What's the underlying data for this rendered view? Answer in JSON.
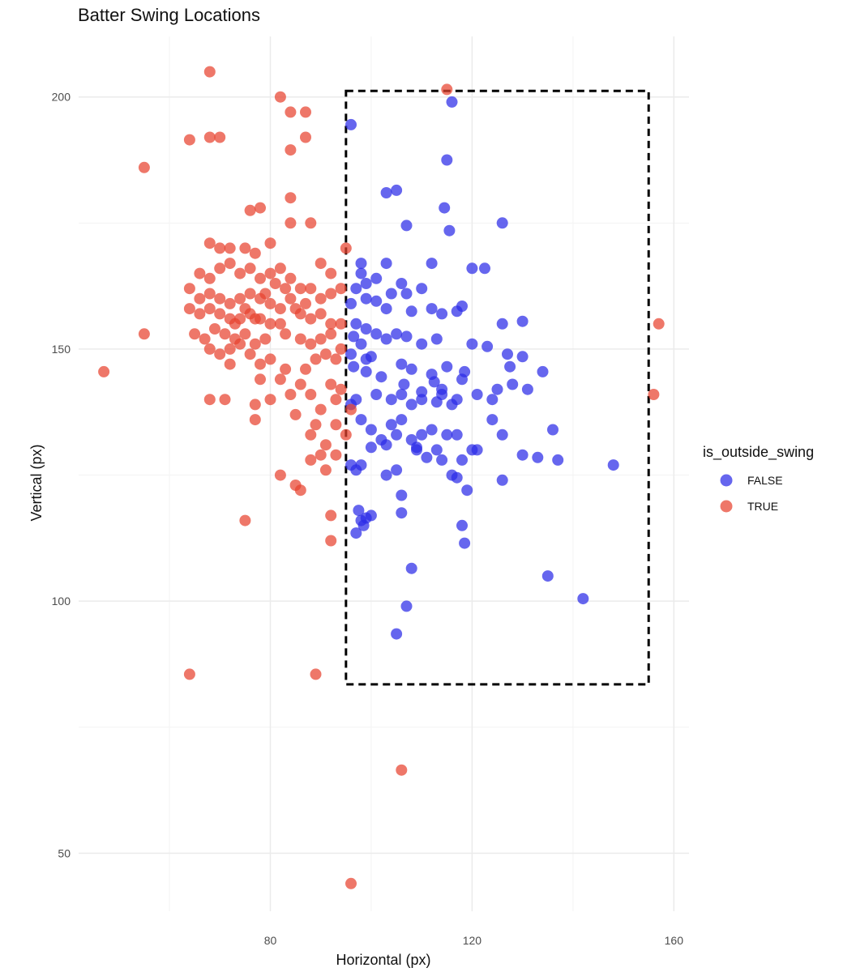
{
  "chart_data": {
    "type": "scatter",
    "title": "Batter Swing Locations",
    "xlabel": "Horizontal (px)",
    "ylabel": "Vertical (px)",
    "xlim": [
      42,
      163
    ],
    "ylim": [
      38.5,
      212
    ],
    "x_ticks": [
      80,
      120,
      160
    ],
    "y_ticks": [
      50,
      100,
      150,
      200
    ],
    "grid": true,
    "legend": {
      "title": "is_outside_swing",
      "placement": "right"
    },
    "strike_zone": {
      "x": [
        95,
        155
      ],
      "y": [
        83.5,
        201.2
      ],
      "style": "dashed"
    },
    "colors": {
      "FALSE": "#2b2be8",
      "TRUE": "#e8422f"
    },
    "series": [
      {
        "name": "FALSE",
        "points": [
          [
            96,
            194.5
          ],
          [
            116,
            199
          ],
          [
            115,
            187.5
          ],
          [
            103,
            181
          ],
          [
            105,
            181.5
          ],
          [
            114.5,
            178
          ],
          [
            107,
            174.5
          ],
          [
            115.5,
            173.5
          ],
          [
            126,
            175
          ],
          [
            98,
            167
          ],
          [
            103,
            167
          ],
          [
            112,
            167
          ],
          [
            120,
            166
          ],
          [
            122.5,
            166
          ],
          [
            98,
            165
          ],
          [
            99,
            163
          ],
          [
            101,
            164
          ],
          [
            104,
            161
          ],
          [
            107,
            161
          ],
          [
            106,
            163
          ],
          [
            110,
            162
          ],
          [
            97,
            162
          ],
          [
            99,
            160
          ],
          [
            101,
            159.5
          ],
          [
            103,
            158
          ],
          [
            96,
            159
          ],
          [
            108,
            157.5
          ],
          [
            112,
            158
          ],
          [
            114,
            157
          ],
          [
            117,
            157.5
          ],
          [
            118,
            158.5
          ],
          [
            130,
            155.5
          ],
          [
            126,
            155
          ],
          [
            97,
            155
          ],
          [
            99,
            154
          ],
          [
            101,
            153
          ],
          [
            96.5,
            152.5
          ],
          [
            103,
            152
          ],
          [
            105,
            153
          ],
          [
            107,
            152.5
          ],
          [
            110,
            151
          ],
          [
            113,
            152
          ],
          [
            120,
            151
          ],
          [
            123,
            150.5
          ],
          [
            98,
            151
          ],
          [
            96,
            149
          ],
          [
            99,
            148
          ],
          [
            100,
            148.5
          ],
          [
            127,
            149
          ],
          [
            130,
            148.5
          ],
          [
            127.5,
            146.5
          ],
          [
            134,
            145.5
          ],
          [
            96.5,
            146.5
          ],
          [
            99,
            145.5
          ],
          [
            102,
            144.5
          ],
          [
            106,
            147
          ],
          [
            108,
            146
          ],
          [
            112,
            145
          ],
          [
            115,
            146.5
          ],
          [
            118,
            144
          ],
          [
            128,
            143
          ],
          [
            131,
            142
          ],
          [
            125,
            142
          ],
          [
            121,
            141
          ],
          [
            124,
            140
          ],
          [
            117,
            140
          ],
          [
            114,
            141
          ],
          [
            113,
            139.5
          ],
          [
            110,
            140
          ],
          [
            108,
            139
          ],
          [
            106,
            141
          ],
          [
            104,
            140
          ],
          [
            101,
            141
          ],
          [
            97,
            140
          ],
          [
            96,
            139
          ],
          [
            98,
            136
          ],
          [
            100,
            134
          ],
          [
            102,
            132
          ],
          [
            104,
            135
          ],
          [
            105,
            133
          ],
          [
            106,
            136
          ],
          [
            108,
            132
          ],
          [
            109,
            130
          ],
          [
            110,
            133
          ],
          [
            112,
            134
          ],
          [
            113,
            130
          ],
          [
            114,
            128
          ],
          [
            115,
            133
          ],
          [
            117,
            133
          ],
          [
            118,
            128
          ],
          [
            116,
            125
          ],
          [
            117,
            124.5
          ],
          [
            121,
            130
          ],
          [
            124,
            136
          ],
          [
            126,
            133
          ],
          [
            130,
            129
          ],
          [
            133,
            128.5
          ],
          [
            136,
            134
          ],
          [
            137,
            128
          ],
          [
            148,
            127
          ],
          [
            126,
            124
          ],
          [
            119,
            122
          ],
          [
            106,
            121
          ],
          [
            103,
            125
          ],
          [
            105,
            126
          ],
          [
            98,
            127
          ],
          [
            97,
            126
          ],
          [
            96,
            127
          ],
          [
            97.5,
            118
          ],
          [
            98,
            116
          ],
          [
            99,
            116.5
          ],
          [
            100,
            117
          ],
          [
            98.5,
            115
          ],
          [
            97,
            113.5
          ],
          [
            106,
            117.5
          ],
          [
            118,
            115
          ],
          [
            118.5,
            111.5
          ],
          [
            108,
            106.5
          ],
          [
            135,
            105
          ],
          [
            142,
            100.5
          ],
          [
            107,
            99
          ],
          [
            105,
            93.5
          ],
          [
            106.5,
            143
          ],
          [
            110,
            141.5
          ],
          [
            112.5,
            143.5
          ],
          [
            114,
            142
          ],
          [
            116,
            139
          ],
          [
            118.5,
            145.5
          ],
          [
            120,
            130
          ],
          [
            109,
            130.5
          ],
          [
            111,
            128.5
          ],
          [
            103,
            131
          ],
          [
            100,
            130.5
          ]
        ]
      },
      {
        "name": "TRUE",
        "points": [
          [
            68,
            205
          ],
          [
            115,
            201.5
          ],
          [
            82,
            200
          ],
          [
            84,
            197
          ],
          [
            87,
            197
          ],
          [
            64,
            191.5
          ],
          [
            68,
            192
          ],
          [
            70,
            192
          ],
          [
            84,
            189.5
          ],
          [
            87,
            192
          ],
          [
            55,
            186
          ],
          [
            84,
            180
          ],
          [
            76,
            177.5
          ],
          [
            78,
            178
          ],
          [
            84,
            175
          ],
          [
            88,
            175
          ],
          [
            68,
            171
          ],
          [
            70,
            170
          ],
          [
            72,
            170
          ],
          [
            75,
            170
          ],
          [
            77,
            169
          ],
          [
            80,
            171
          ],
          [
            95,
            170
          ],
          [
            66,
            165
          ],
          [
            68,
            164
          ],
          [
            70,
            166
          ],
          [
            72,
            167
          ],
          [
            74,
            165
          ],
          [
            76,
            166
          ],
          [
            78,
            164
          ],
          [
            80,
            165
          ],
          [
            82,
            166
          ],
          [
            84,
            164
          ],
          [
            90,
            167
          ],
          [
            92,
            165
          ],
          [
            64,
            162
          ],
          [
            66,
            160
          ],
          [
            68,
            161
          ],
          [
            70,
            160
          ],
          [
            72,
            159
          ],
          [
            74,
            160
          ],
          [
            76,
            161
          ],
          [
            78,
            160
          ],
          [
            80,
            159
          ],
          [
            82,
            158
          ],
          [
            84,
            160
          ],
          [
            86,
            162
          ],
          [
            88,
            162
          ],
          [
            90,
            160
          ],
          [
            92,
            161
          ],
          [
            94,
            162
          ],
          [
            64,
            158
          ],
          [
            66,
            157
          ],
          [
            68,
            158
          ],
          [
            70,
            157
          ],
          [
            72,
            156
          ],
          [
            74,
            156
          ],
          [
            76,
            157
          ],
          [
            78,
            156
          ],
          [
            80,
            155
          ],
          [
            82,
            155
          ],
          [
            86,
            157
          ],
          [
            88,
            156
          ],
          [
            90,
            157
          ],
          [
            92,
            155
          ],
          [
            94,
            155
          ],
          [
            65,
            153
          ],
          [
            67,
            152
          ],
          [
            69,
            154
          ],
          [
            71,
            153
          ],
          [
            73,
            152
          ],
          [
            75,
            153
          ],
          [
            77,
            151
          ],
          [
            79,
            152
          ],
          [
            83,
            153
          ],
          [
            86,
            152
          ],
          [
            88,
            151
          ],
          [
            90,
            152
          ],
          [
            92,
            153
          ],
          [
            94,
            150
          ],
          [
            55,
            153
          ],
          [
            68,
            150
          ],
          [
            70,
            149
          ],
          [
            72,
            150
          ],
          [
            74,
            151
          ],
          [
            76,
            149
          ],
          [
            78,
            147
          ],
          [
            80,
            148
          ],
          [
            83,
            146
          ],
          [
            87,
            146
          ],
          [
            89,
            148
          ],
          [
            91,
            149
          ],
          [
            93,
            148
          ],
          [
            47,
            145.5
          ],
          [
            72,
            147
          ],
          [
            78,
            144
          ],
          [
            82,
            144
          ],
          [
            86,
            143
          ],
          [
            88,
            141
          ],
          [
            92,
            143
          ],
          [
            94,
            142
          ],
          [
            68,
            140
          ],
          [
            71,
            140
          ],
          [
            77,
            139
          ],
          [
            80,
            140
          ],
          [
            84,
            141
          ],
          [
            90,
            138
          ],
          [
            93,
            140
          ],
          [
            96,
            138
          ],
          [
            77,
            136
          ],
          [
            85,
            137
          ],
          [
            89,
            135
          ],
          [
            93,
            135
          ],
          [
            88,
            133
          ],
          [
            95,
            133
          ],
          [
            91,
            131
          ],
          [
            88,
            128
          ],
          [
            90,
            129
          ],
          [
            93,
            129
          ],
          [
            91,
            126
          ],
          [
            82,
            125
          ],
          [
            85,
            123
          ],
          [
            86,
            122
          ],
          [
            75,
            116
          ],
          [
            92,
            117
          ],
          [
            92,
            112
          ],
          [
            64,
            85.5
          ],
          [
            89,
            85.5
          ],
          [
            106,
            66.5
          ],
          [
            96,
            44
          ],
          [
            157,
            155
          ],
          [
            156,
            141
          ],
          [
            73,
            155
          ],
          [
            75,
            158
          ],
          [
            77,
            156
          ],
          [
            79,
            161
          ],
          [
            81,
            163
          ],
          [
            83,
            162
          ],
          [
            85,
            158
          ],
          [
            87,
            159
          ]
        ]
      }
    ]
  }
}
